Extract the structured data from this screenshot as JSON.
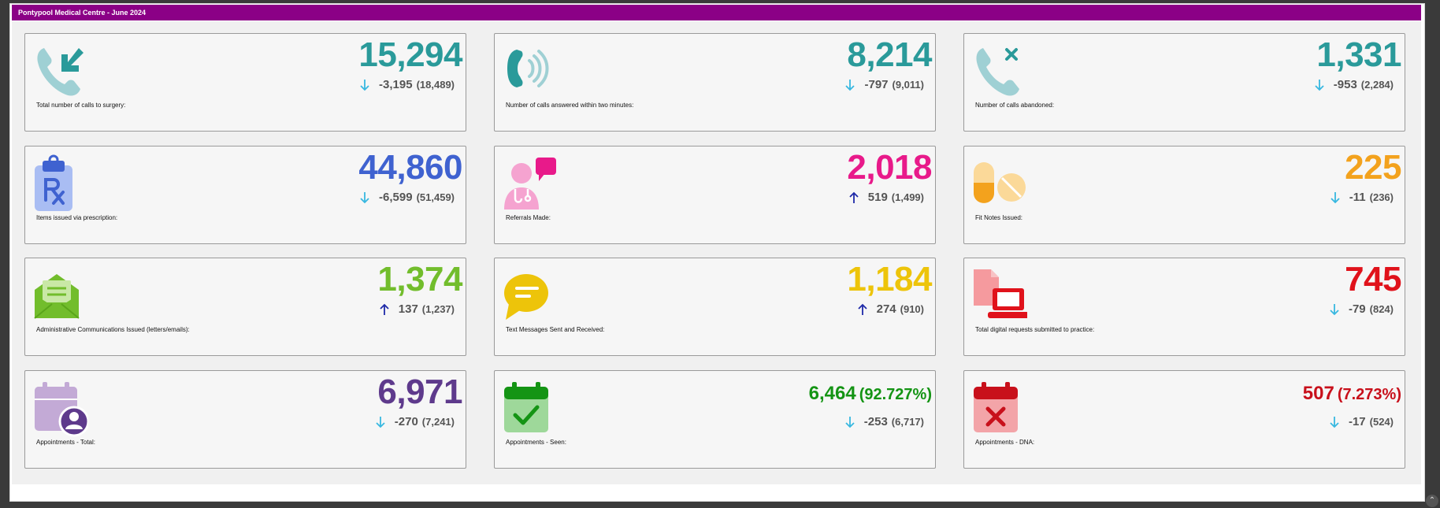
{
  "header": {
    "title": "Pontypool Medical Centre - June 2024"
  },
  "colors": {
    "teal": "#2a9a9a",
    "blue": "#3f62d0",
    "magenta": "#e81a8a",
    "orange": "#f3a21d",
    "green_light": "#72bd2c",
    "yellow": "#edc40a",
    "red": "#e0121b",
    "purple": "#5e3a8c",
    "green": "#149414",
    "dark_red": "#c8101b",
    "arrow_down": "#38b8e0",
    "arrow_up": "#1f2aa8"
  },
  "cards": [
    {
      "value": "15,294",
      "change": "-3,195",
      "prev": "(18,489)",
      "trend": "down",
      "label": "Total number of calls to surgery:",
      "icon": "phone-incoming-icon"
    },
    {
      "value": "8,214",
      "change": "-797",
      "prev": "(9,011)",
      "trend": "down",
      "label": "Number of calls answered within two minutes:",
      "icon": "phone-ringing-icon"
    },
    {
      "value": "1,331",
      "change": "-953",
      "prev": "(2,284)",
      "trend": "down",
      "label": "Number of calls abandoned:",
      "icon": "phone-missed-icon"
    },
    {
      "value": "44,860",
      "change": "-6,599",
      "prev": "(51,459)",
      "trend": "down",
      "label": "Items issued via prescription:",
      "icon": "prescription-clipboard-icon"
    },
    {
      "value": "2,018",
      "change": "519",
      "prev": "(1,499)",
      "trend": "up",
      "label": "Referrals Made:",
      "icon": "doctor-chat-icon"
    },
    {
      "value": "225",
      "change": "-11",
      "prev": "(236)",
      "trend": "down",
      "label": "Fit Notes Issued:",
      "icon": "pills-icon"
    },
    {
      "value": "1,374",
      "change": "137",
      "prev": "(1,237)",
      "trend": "up",
      "label": "Administrative Communications Issued (letters/emails):",
      "icon": "open-envelope-icon"
    },
    {
      "value": "1,184",
      "change": "274",
      "prev": "(910)",
      "trend": "up",
      "label": "Text Messages Sent and Received:",
      "icon": "speech-bubble-icon"
    },
    {
      "value": "745",
      "change": "-79",
      "prev": "(824)",
      "trend": "down",
      "label": "Total digital requests submitted to practice:",
      "icon": "laptop-document-icon"
    },
    {
      "value": "6,971",
      "change": "-270",
      "prev": "(7,241)",
      "trend": "down",
      "label": "Appointments - Total:",
      "icon": "calendar-user-icon"
    },
    {
      "value": "6,464",
      "pct": "(92.727%)",
      "change": "-253",
      "prev": "(6,717)",
      "trend": "down",
      "label": "Appointments - Seen:",
      "icon": "calendar-check-icon"
    },
    {
      "value": "507",
      "pct": "(7.273%)",
      "change": "-17",
      "prev": "(524)",
      "trend": "down",
      "label": "Appointments - DNA:",
      "icon": "calendar-x-icon"
    }
  ]
}
